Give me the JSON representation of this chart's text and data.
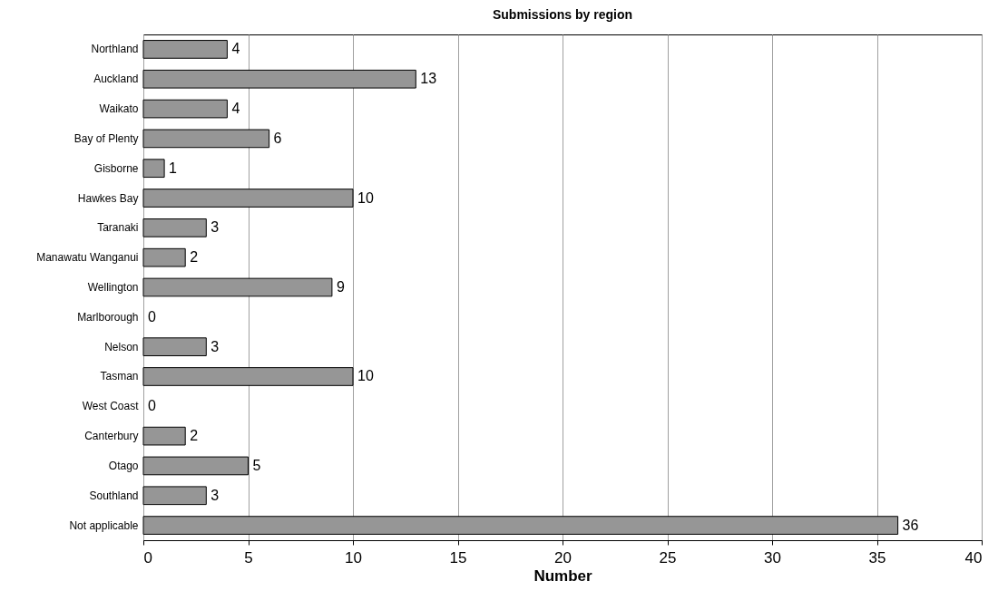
{
  "chart_data": {
    "type": "bar",
    "orientation": "horizontal",
    "title": "Submissions by region",
    "xlabel": "Number",
    "categories": [
      "Northland",
      "Auckland",
      "Waikato",
      "Bay of Plenty",
      "Gisborne",
      "Hawkes Bay",
      "Taranaki",
      "Manawatu Wanganui",
      "Wellington",
      "Marlborough",
      "Nelson",
      "Tasman",
      "West Coast",
      "Canterbury",
      "Otago",
      "Southland",
      "Not applicable"
    ],
    "values": [
      4,
      13,
      4,
      6,
      1,
      10,
      3,
      2,
      9,
      0,
      3,
      10,
      0,
      2,
      5,
      3,
      36
    ],
    "color": "#969696",
    "xlim": [
      0,
      40
    ],
    "xticks": [
      0,
      5,
      10,
      15,
      20,
      25,
      30,
      35,
      40
    ],
    "grid": "x",
    "data_labels": true
  }
}
